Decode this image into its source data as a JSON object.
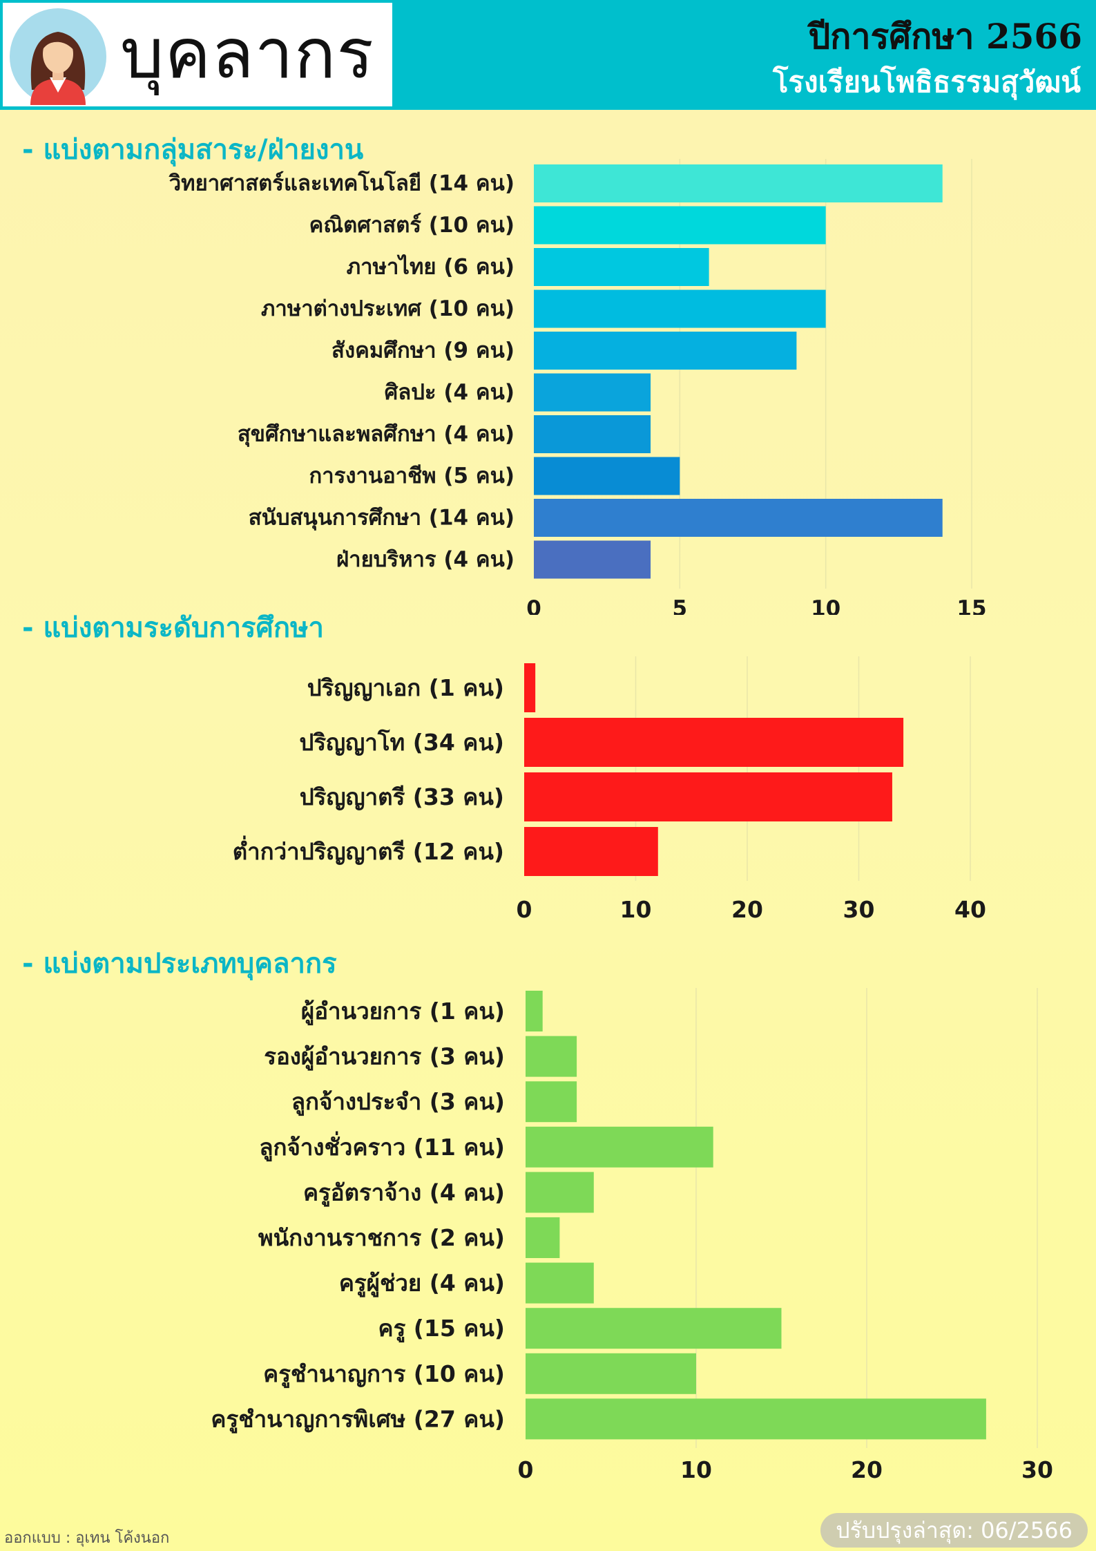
{
  "header": {
    "title": "บุคลากร",
    "year": "ปีการศึกษา 2566",
    "school": "โรงเรียนโพธิธรรมสุวัฒน์"
  },
  "sections": [
    {
      "title": "- แบ่งตามกลุ่มสาระ/ฝ่ายงาน"
    },
    {
      "title": "- แบ่งตามระดับการศึกษา"
    },
    {
      "title": "- แบ่งตามประเภทบุคลากร"
    }
  ],
  "footer": {
    "credit": "ออกแบบ : อุเทน โค้งนอก",
    "updated": "ปรับปรุงล่าสุด: 06/2566"
  },
  "colors": {
    "header_bg": "#00bfcc",
    "section_title": "#0bb6c6",
    "chart2_bar": "#fe1a1a",
    "chart3_bar": "#7ed957"
  },
  "chart_data": [
    {
      "type": "bar",
      "orientation": "horizontal",
      "categories": [
        "วิทยาศาสตร์และเทคโนโลยี (14 คน)",
        "คณิตศาสตร์ (10 คน)",
        "ภาษาไทย (6 คน)",
        "ภาษาต่างประเทศ (10 คน)",
        "สังคมศึกษา (9 คน)",
        "ศิลปะ (4 คน)",
        "สุขศึกษาและพลศึกษา (4 คน)",
        "การงานอาชีพ (5 คน)",
        "สนับสนุนการศึกษา (14 คน)",
        "ฝ่ายบริหาร (4 คน)"
      ],
      "values": [
        14,
        10,
        6,
        10,
        9,
        4,
        4,
        5,
        14,
        4
      ],
      "colors": [
        "#3ee6d6",
        "#00d8dc",
        "#00c8e0",
        "#00bce0",
        "#05b0e0",
        "#0aa4dc",
        "#0a98d8",
        "#088cd4",
        "#2f7fcf",
        "#4a6fc0"
      ],
      "xlim": [
        0,
        15
      ],
      "xticks": [
        0,
        5,
        10,
        15
      ],
      "grid": true
    },
    {
      "type": "bar",
      "orientation": "horizontal",
      "categories": [
        "ปริญญาเอก (1 คน)",
        "ปริญญาโท (34 คน)",
        "ปริญญาตรี (33 คน)",
        "ต่ำกว่าปริญญาตรี (12 คน)"
      ],
      "values": [
        1,
        34,
        33,
        12
      ],
      "xlim": [
        0,
        40
      ],
      "xticks": [
        0,
        10,
        20,
        30,
        40
      ],
      "grid": true
    },
    {
      "type": "bar",
      "orientation": "horizontal",
      "categories": [
        "ผู้อำนวยการ (1 คน)",
        "รองผู้อำนวยการ (3 คน)",
        "ลูกจ้างประจำ (3 คน)",
        "ลูกจ้างชั่วคราว (11 คน)",
        "ครูอัตราจ้าง (4 คน)",
        "พนักงานราชการ (2 คน)",
        "ครูผู้ช่วย (4 คน)",
        "ครู (15 คน)",
        "ครูชำนาญการ (10 คน)",
        "ครูชำนาญการพิเศษ (27 คน)"
      ],
      "values": [
        1,
        3,
        3,
        11,
        4,
        2,
        4,
        15,
        10,
        27
      ],
      "xlim": [
        0,
        30
      ],
      "xticks": [
        0,
        10,
        20,
        30
      ],
      "grid": true
    }
  ]
}
